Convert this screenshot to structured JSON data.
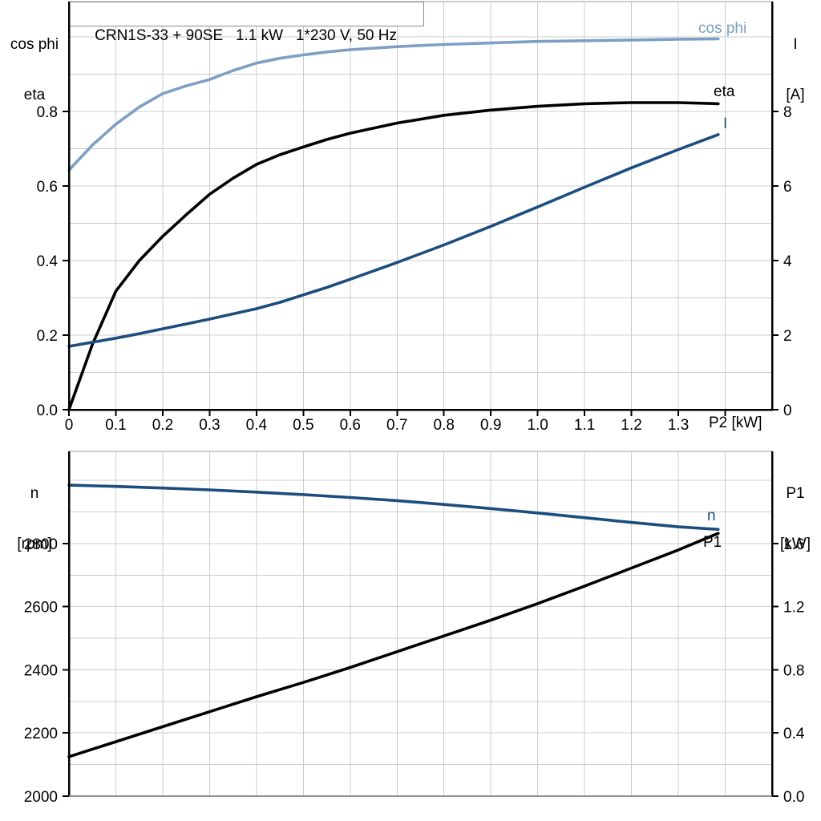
{
  "page": {
    "background": "#ffffff",
    "grid_color": "#cccccc",
    "frame_color": "#9b9b9b",
    "accent_lightblue": "#7E9FC3",
    "accent_darkblue": "#1B4D7E"
  },
  "chart_data": [
    {
      "type": "line",
      "title": "CRN1S-33 + 90SE   1.1 kW   1*230 V, 50 Hz",
      "xlabel": "P2 [kW]",
      "ylabel_left_lines": [
        "cos phi",
        "eta"
      ],
      "ylabel_right_lines": [
        "I",
        "[A]"
      ],
      "xlim": [
        0,
        1.5
      ],
      "ylim_left": [
        0,
        1.095
      ],
      "ylim_right": [
        0,
        10.95
      ],
      "grid": true,
      "x_ticks": {
        "values": [
          0,
          0.1,
          0.2,
          0.3,
          0.4,
          0.5,
          0.6,
          0.7,
          0.8,
          0.9,
          1.0,
          1.1,
          1.2,
          1.3,
          1.4
        ],
        "labels": [
          "0",
          "0.1",
          "0.2",
          "0.3",
          "0.4",
          "0.5",
          "0.6",
          "0.7",
          "0.8",
          "0.9",
          "1.0",
          "1.1",
          "1.2",
          "1.3",
          ""
        ]
      },
      "y_ticks_left": {
        "values": [
          0,
          0.2,
          0.4,
          0.6,
          0.8
        ],
        "labels": [
          "0.0",
          "0.2",
          "0.4",
          "0.6",
          "0.8"
        ]
      },
      "y_ticks_right": {
        "values": [
          0,
          2,
          4,
          6,
          8
        ],
        "labels": [
          "0",
          "2",
          "4",
          "6",
          "8"
        ]
      },
      "x_grid": [
        0.1,
        0.2,
        0.3,
        0.4,
        0.5,
        0.6,
        0.7,
        0.8,
        0.9,
        1.0,
        1.1,
        1.2,
        1.3,
        1.4
      ],
      "y_grid_left": [
        0.1,
        0.2,
        0.3,
        0.4,
        0.5,
        0.6,
        0.7,
        0.8,
        0.9,
        1.0
      ],
      "series": [
        {
          "name": "cos phi",
          "axis": "left",
          "color": "#7E9FC3",
          "x": [
            0,
            0.05,
            0.1,
            0.15,
            0.2,
            0.25,
            0.3,
            0.35,
            0.4,
            0.45,
            0.5,
            0.55,
            0.6,
            0.7,
            0.8,
            0.9,
            1.0,
            1.1,
            1.2,
            1.3,
            1.385
          ],
          "y": [
            0.643,
            0.71,
            0.766,
            0.812,
            0.848,
            0.869,
            0.886,
            0.91,
            0.93,
            0.943,
            0.952,
            0.96,
            0.966,
            0.974,
            0.98,
            0.984,
            0.988,
            0.99,
            0.992,
            0.994,
            0.995
          ]
        },
        {
          "name": "eta",
          "axis": "left",
          "color": "#000000",
          "x": [
            0,
            0.05,
            0.1,
            0.15,
            0.2,
            0.25,
            0.3,
            0.35,
            0.4,
            0.45,
            0.5,
            0.55,
            0.6,
            0.7,
            0.8,
            0.9,
            1.0,
            1.1,
            1.2,
            1.3,
            1.385
          ],
          "y": [
            0.0,
            0.175,
            0.318,
            0.4,
            0.465,
            0.523,
            0.578,
            0.621,
            0.658,
            0.684,
            0.705,
            0.725,
            0.742,
            0.769,
            0.79,
            0.804,
            0.814,
            0.821,
            0.824,
            0.824,
            0.821
          ]
        },
        {
          "name": "I",
          "axis": "right",
          "color": "#1B4D7E",
          "x": [
            0,
            0.05,
            0.1,
            0.15,
            0.2,
            0.25,
            0.3,
            0.35,
            0.4,
            0.45,
            0.5,
            0.55,
            0.6,
            0.7,
            0.8,
            0.9,
            1.0,
            1.1,
            1.2,
            1.3,
            1.385
          ],
          "y": [
            1.7,
            1.81,
            1.92,
            2.04,
            2.17,
            2.3,
            2.43,
            2.57,
            2.71,
            2.88,
            3.08,
            3.28,
            3.5,
            3.95,
            4.42,
            4.92,
            5.44,
            5.97,
            6.49,
            6.98,
            7.38
          ]
        }
      ]
    },
    {
      "type": "line",
      "title": "",
      "xlabel": "",
      "ylabel_left_lines": [
        "n",
        "[rpm]"
      ],
      "ylabel_right_lines": [
        "P1",
        "[kW]"
      ],
      "xlim": [
        0,
        1.5
      ],
      "ylim_left": [
        2000,
        3092
      ],
      "ylim_right": [
        0,
        2.184
      ],
      "grid": true,
      "y_ticks_left": {
        "values": [
          2000,
          2200,
          2400,
          2600,
          2800
        ],
        "labels": [
          "2000",
          "2200",
          "2400",
          "2600",
          "2800"
        ]
      },
      "y_ticks_right": {
        "values": [
          0,
          0.4,
          0.8,
          1.2,
          1.6
        ],
        "labels": [
          "0.0",
          "0.4",
          "0.8",
          "1.2",
          "1.6"
        ]
      },
      "x_grid": [
        0.1,
        0.2,
        0.3,
        0.4,
        0.5,
        0.6,
        0.7,
        0.8,
        0.9,
        1.0,
        1.1,
        1.2,
        1.3,
        1.4
      ],
      "y_grid_left": [
        2100,
        2200,
        2300,
        2400,
        2500,
        2600,
        2700,
        2800,
        2900,
        3000
      ],
      "series": [
        {
          "name": "n",
          "axis": "left",
          "color": "#1B4D7E",
          "x": [
            0,
            0.1,
            0.2,
            0.3,
            0.4,
            0.5,
            0.6,
            0.7,
            0.8,
            0.9,
            1.0,
            1.1,
            1.2,
            1.3,
            1.385
          ],
          "y": [
            2985,
            2981,
            2976,
            2970,
            2963,
            2955,
            2946,
            2936,
            2924,
            2911,
            2897,
            2882,
            2867,
            2853,
            2845
          ]
        },
        {
          "name": "P1",
          "axis": "right",
          "color": "#000000",
          "x": [
            0,
            0.1,
            0.2,
            0.3,
            0.4,
            0.5,
            0.6,
            0.7,
            0.8,
            0.9,
            1.0,
            1.1,
            1.2,
            1.3,
            1.385
          ],
          "y": [
            0.25,
            0.345,
            0.44,
            0.535,
            0.63,
            0.72,
            0.815,
            0.915,
            1.015,
            1.115,
            1.22,
            1.33,
            1.445,
            1.56,
            1.665
          ]
        }
      ]
    }
  ]
}
